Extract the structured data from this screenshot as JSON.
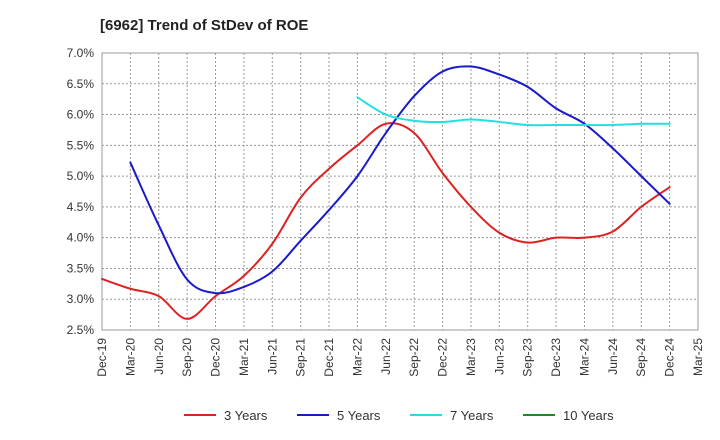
{
  "chart_data": {
    "type": "line",
    "title": "[6962]  Trend of StDev of ROE",
    "xlabel": "",
    "ylabel": "",
    "x_ticks": [
      "Dec-19",
      "Mar-20",
      "Jun-20",
      "Sep-20",
      "Dec-20",
      "Mar-21",
      "Jun-21",
      "Sep-21",
      "Dec-21",
      "Mar-22",
      "Jun-22",
      "Sep-22",
      "Dec-22",
      "Mar-23",
      "Jun-23",
      "Sep-23",
      "Dec-23",
      "Mar-24",
      "Jun-24",
      "Sep-24",
      "Dec-24",
      "Mar-25"
    ],
    "y_ticks": [
      "7.0%",
      "6.5%",
      "6.0%",
      "5.5%",
      "5.0%",
      "4.5%",
      "4.0%",
      "3.5%",
      "3.0%",
      "2.5%"
    ],
    "ylim": [
      2.5,
      7.0
    ],
    "grid": true,
    "legend_position": "bottom",
    "series": [
      {
        "name": "3 Years",
        "color": "#dd2222",
        "points": [
          [
            "Dec-19",
            3.33
          ],
          [
            "Mar-20",
            3.17
          ],
          [
            "Jun-20",
            3.05
          ],
          [
            "Sep-20",
            2.68
          ],
          [
            "Dec-20",
            3.05
          ],
          [
            "Mar-21",
            3.38
          ],
          [
            "Jun-21",
            3.9
          ],
          [
            "Sep-21",
            4.65
          ],
          [
            "Dec-21",
            5.12
          ],
          [
            "Mar-22",
            5.5
          ],
          [
            "Jun-22",
            5.85
          ],
          [
            "Sep-22",
            5.7
          ],
          [
            "Dec-22",
            5.05
          ],
          [
            "Mar-23",
            4.5
          ],
          [
            "Jun-23",
            4.08
          ],
          [
            "Sep-23",
            3.92
          ],
          [
            "Dec-23",
            4.0
          ],
          [
            "Mar-24",
            4.0
          ],
          [
            "Jun-24",
            4.1
          ],
          [
            "Sep-24",
            4.5
          ],
          [
            "Dec-24",
            4.82
          ]
        ]
      },
      {
        "name": "5 Years",
        "color": "#1a1acc",
        "points": [
          [
            "Mar-20",
            5.22
          ],
          [
            "Jun-20",
            4.2
          ],
          [
            "Sep-20",
            3.32
          ],
          [
            "Dec-20",
            3.1
          ],
          [
            "Mar-21",
            3.2
          ],
          [
            "Jun-21",
            3.45
          ],
          [
            "Sep-21",
            3.95
          ],
          [
            "Dec-21",
            4.45
          ],
          [
            "Mar-22",
            5.0
          ],
          [
            "Jun-22",
            5.7
          ],
          [
            "Sep-22",
            6.3
          ],
          [
            "Dec-22",
            6.7
          ],
          [
            "Mar-23",
            6.78
          ],
          [
            "Jun-23",
            6.65
          ],
          [
            "Sep-23",
            6.45
          ],
          [
            "Dec-23",
            6.1
          ],
          [
            "Mar-24",
            5.85
          ],
          [
            "Jun-24",
            5.45
          ],
          [
            "Sep-24",
            5.0
          ],
          [
            "Dec-24",
            4.55
          ]
        ]
      },
      {
        "name": "7 Years",
        "color": "#22e0e0",
        "points": [
          [
            "Mar-22",
            6.28
          ],
          [
            "Jun-22",
            6.0
          ],
          [
            "Sep-22",
            5.9
          ],
          [
            "Dec-22",
            5.88
          ],
          [
            "Mar-23",
            5.92
          ],
          [
            "Jun-23",
            5.88
          ],
          [
            "Sep-23",
            5.83
          ],
          [
            "Dec-23",
            5.83
          ],
          [
            "Mar-24",
            5.83
          ],
          [
            "Jun-24",
            5.83
          ],
          [
            "Sep-24",
            5.85
          ],
          [
            "Dec-24",
            5.85
          ]
        ]
      },
      {
        "name": "10 Years",
        "color": "#228822",
        "points": []
      }
    ]
  }
}
